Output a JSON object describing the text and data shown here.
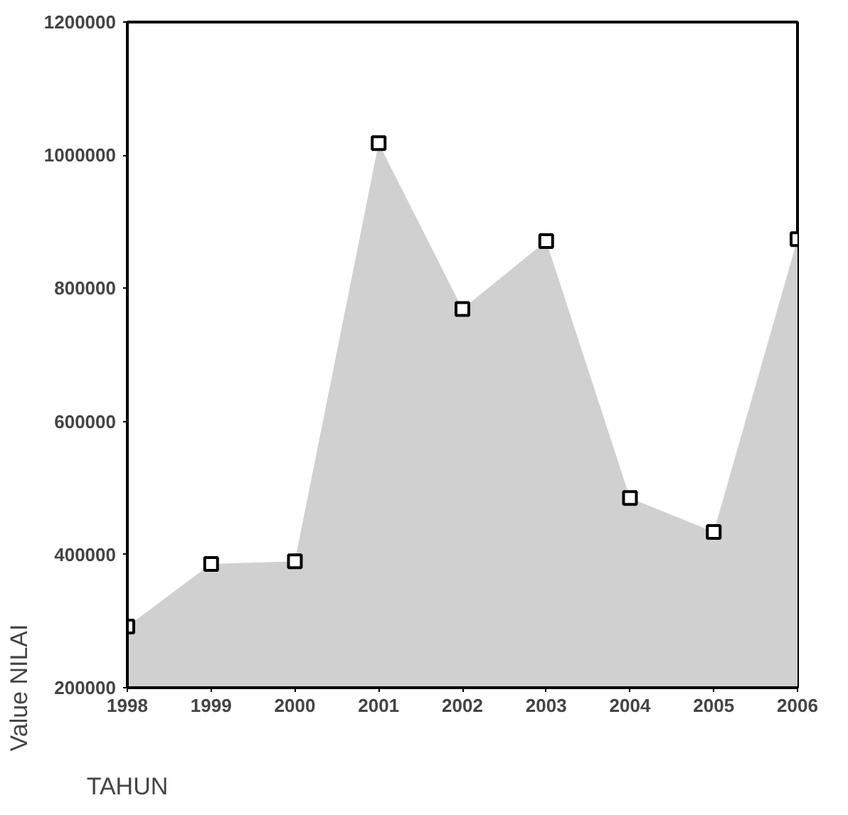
{
  "chart_data": {
    "type": "area",
    "xlabel": "TAHUN",
    "ylabel": "Value NILAI",
    "x": [
      1998,
      1999,
      2000,
      2001,
      2002,
      2003,
      2004,
      2005,
      2006
    ],
    "series": [
      {
        "color": "#d0d0d0",
        "values": [
          292000,
          386000,
          390000,
          1018000,
          769000,
          871000,
          485000,
          434000,
          874000
        ]
      }
    ],
    "xlim": [
      1998,
      2006
    ],
    "xticks": [
      1998,
      1999,
      2000,
      2001,
      2002,
      2003,
      2004,
      2005,
      2006
    ],
    "ylim": [
      200000,
      1200000
    ],
    "yticks": [
      200000,
      400000,
      600000,
      800000,
      1000000,
      1200000
    ],
    "marker": "square",
    "grid": false
  }
}
